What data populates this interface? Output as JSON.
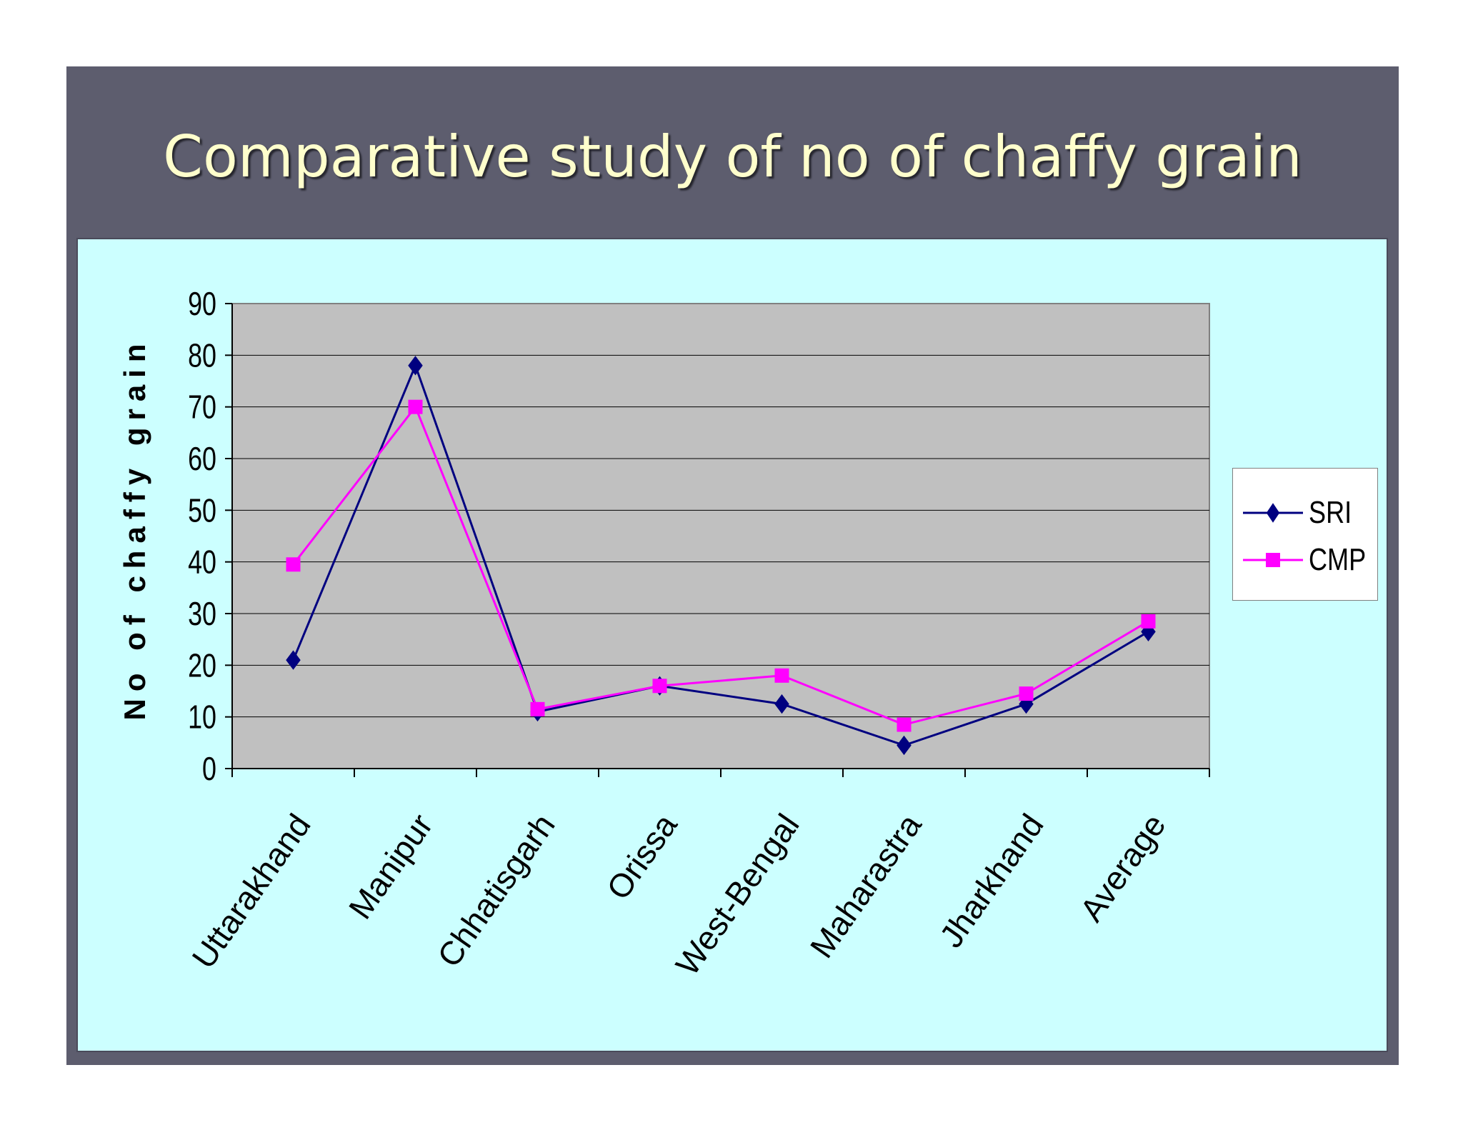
{
  "slide": {
    "title": "Comparative study of no of chaffy grain",
    "background_color": "#5d5d6e",
    "title_color": "#ffffcc",
    "panel_color": "#ccffff",
    "plot_color": "#c0c0c0"
  },
  "chart_data": {
    "type": "line",
    "title": "",
    "xlabel": "",
    "ylabel": "No of chaffy grain",
    "categories": [
      "Uttarakhand",
      "Manipur",
      "Chhatisgarh",
      "Orissa",
      "West-Bengal",
      "Maharastra",
      "Jharkhand",
      "Average"
    ],
    "ylim": [
      0,
      90
    ],
    "yticks": [
      0,
      10,
      20,
      30,
      40,
      50,
      60,
      70,
      80,
      90
    ],
    "grid": true,
    "legend_position": "right",
    "series": [
      {
        "name": "SRI",
        "color": "#000080",
        "marker": "diamond",
        "values": [
          21,
          78,
          11,
          16,
          12.5,
          4.5,
          12.5,
          26.5
        ]
      },
      {
        "name": "CMP",
        "color": "#ff00ff",
        "marker": "square",
        "values": [
          39.5,
          70,
          11.5,
          16,
          18,
          8.5,
          14.5,
          28.5
        ]
      }
    ]
  }
}
